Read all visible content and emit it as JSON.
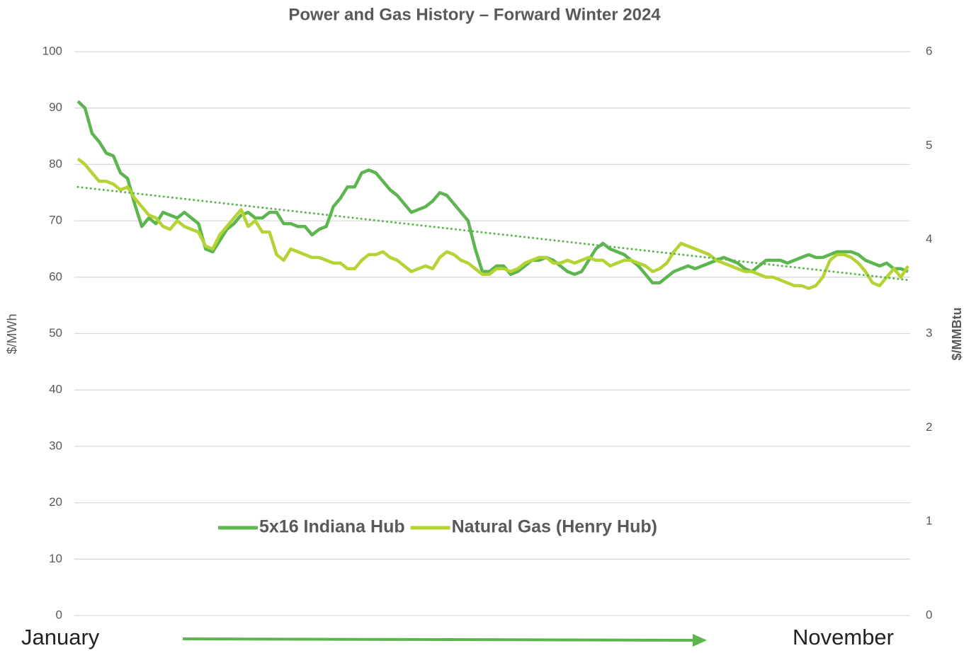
{
  "chart_data": {
    "type": "line",
    "title": "Power and Gas History – Forward Winter 2024",
    "y_label": "$/MWh",
    "y2_label": "$/MMBtu",
    "categories": [
      "January",
      null,
      null,
      null,
      null,
      null,
      null,
      null,
      null,
      null,
      null,
      null,
      null,
      null,
      null,
      null,
      null,
      null,
      null,
      null,
      null,
      null,
      null,
      null,
      null,
      null,
      null,
      null,
      null,
      null,
      null,
      null,
      null,
      null,
      null,
      null,
      null,
      null,
      null,
      null,
      null,
      null,
      null,
      null,
      null,
      null,
      null,
      null,
      null,
      null,
      null,
      null,
      null,
      null,
      null,
      null,
      null,
      null,
      null,
      null,
      null,
      null,
      null,
      null,
      null,
      null,
      null,
      null,
      null,
      null,
      null,
      null,
      null,
      null,
      null,
      null,
      null,
      null,
      null,
      null,
      null,
      null,
      null,
      null,
      null,
      null,
      null,
      null,
      null,
      null,
      null,
      null,
      null,
      null,
      null,
      null,
      null,
      null,
      null,
      null,
      null,
      null,
      null,
      null,
      null,
      null,
      null,
      null,
      null,
      null,
      null,
      null,
      null,
      null,
      null,
      null,
      null,
      "November"
    ],
    "ylim": [
      0,
      100
    ],
    "yticks": [
      0,
      10,
      20,
      30,
      40,
      50,
      60,
      70,
      80,
      90,
      100
    ],
    "y2lim": [
      0,
      6
    ],
    "y2ticks": [
      0,
      1,
      2,
      3,
      4,
      5,
      6
    ],
    "grid": true,
    "legend": "inside-bottom",
    "series": [
      {
        "name": "5x16 Indiana Hub",
        "color": "#5cb54e",
        "values": [
          91.2,
          90,
          85.5,
          84,
          82,
          81.5,
          78.5,
          77.5,
          73,
          69,
          70.5,
          69.5,
          71.5,
          71,
          70.5,
          71.5,
          70.5,
          69.5,
          65,
          64.5,
          66.5,
          68.5,
          69.5,
          71,
          71.5,
          70.5,
          70.5,
          71.5,
          71.5,
          69.5,
          69.5,
          69,
          69,
          67.5,
          68.5,
          69,
          72.5,
          74,
          76,
          76,
          78.5,
          79,
          78.5,
          77,
          75.5,
          74.5,
          73,
          71.5,
          72,
          72.5,
          73.5,
          75,
          74.5,
          73,
          71.5,
          70,
          65,
          61,
          61,
          62,
          62,
          60.5,
          61,
          62,
          63,
          63,
          63.5,
          63,
          62,
          61,
          60.5,
          61,
          63,
          65,
          66,
          65,
          64.5,
          64,
          63,
          62,
          60.5,
          59,
          59,
          60,
          61,
          61.5,
          62,
          61.5,
          62,
          62.5,
          63,
          63.5,
          63,
          62.5,
          61.5,
          61,
          62,
          63,
          63,
          63,
          62.5,
          63,
          63.5,
          64,
          63.5,
          63.5,
          64,
          64.5,
          64.5,
          64.5,
          64,
          63,
          62.5,
          62,
          62.5,
          61.5,
          61.5,
          61
        ]
      },
      {
        "name": "Natural Gas (Henry Hub)",
        "color": "#b4d334",
        "axis": "y2",
        "values": [
          4.86,
          4.8,
          4.71,
          4.62,
          4.62,
          4.59,
          4.53,
          4.56,
          4.44,
          4.35,
          4.26,
          4.23,
          4.14,
          4.11,
          4.2,
          4.14,
          4.11,
          4.08,
          3.93,
          3.9,
          4.05,
          4.14,
          4.23,
          4.32,
          4.14,
          4.2,
          4.08,
          4.08,
          3.84,
          3.78,
          3.9,
          3.87,
          3.84,
          3.81,
          3.81,
          3.78,
          3.75,
          3.75,
          3.69,
          3.69,
          3.78,
          3.84,
          3.84,
          3.87,
          3.81,
          3.78,
          3.72,
          3.66,
          3.69,
          3.72,
          3.69,
          3.81,
          3.87,
          3.84,
          3.78,
          3.75,
          3.69,
          3.63,
          3.63,
          3.69,
          3.69,
          3.66,
          3.69,
          3.75,
          3.78,
          3.81,
          3.81,
          3.75,
          3.75,
          3.78,
          3.75,
          3.78,
          3.81,
          3.78,
          3.78,
          3.72,
          3.75,
          3.78,
          3.78,
          3.75,
          3.72,
          3.66,
          3.69,
          3.75,
          3.87,
          3.96,
          3.93,
          3.9,
          3.87,
          3.84,
          3.78,
          3.75,
          3.72,
          3.69,
          3.66,
          3.66,
          3.63,
          3.6,
          3.6,
          3.57,
          3.54,
          3.51,
          3.51,
          3.48,
          3.51,
          3.6,
          3.78,
          3.84,
          3.84,
          3.81,
          3.75,
          3.66,
          3.54,
          3.51,
          3.6,
          3.69,
          3.6,
          3.72
        ]
      }
    ],
    "trendline": {
      "color": "#5cb54e",
      "start": 76,
      "end": 59.5
    }
  }
}
